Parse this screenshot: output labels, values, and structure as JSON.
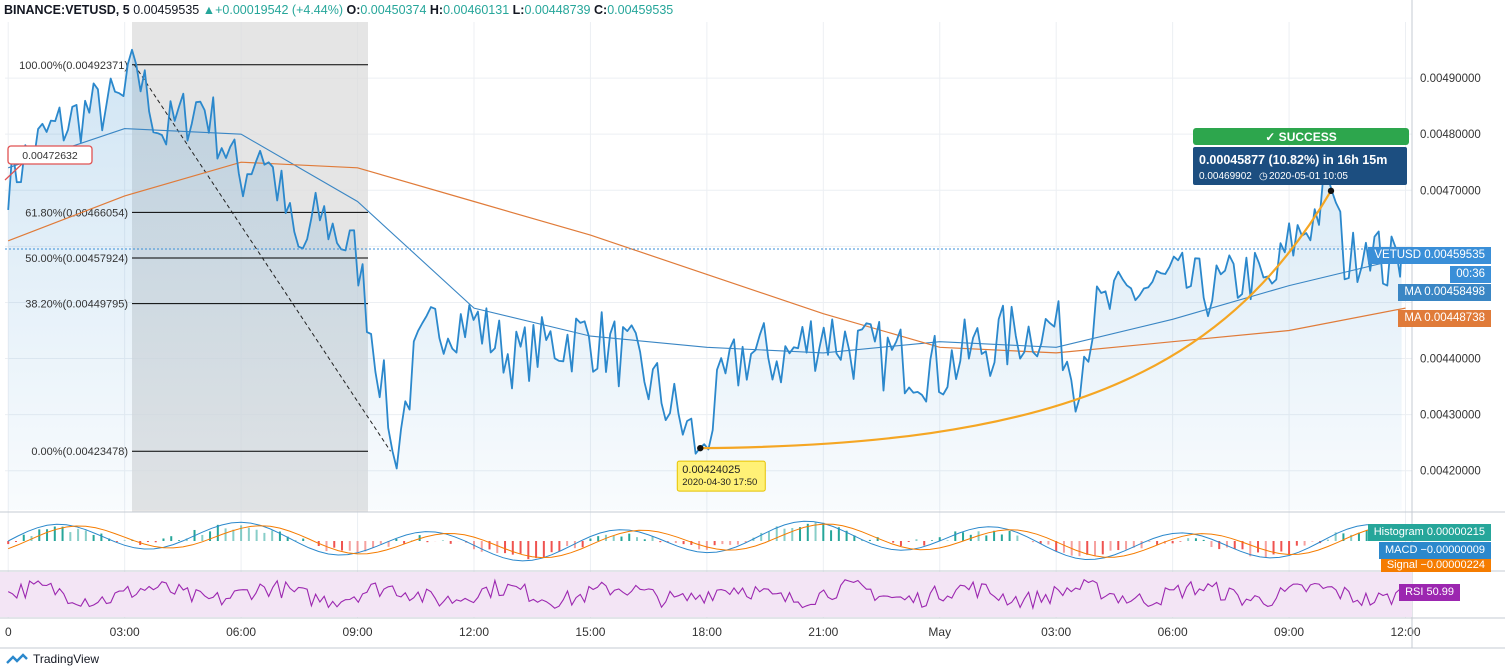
{
  "header": {
    "symbol": "BINANCE:VETUSD, 5",
    "last": "0.00459535",
    "change": "+0.00019542 (+4.44%)",
    "o_label": "O:",
    "o": "0.00450374",
    "h_label": "H:",
    "h": "0.00460131",
    "l_label": "L:",
    "l": "0.00448739",
    "c_label": "C:",
    "c": "0.00459535"
  },
  "price_axis": {
    "ticks": [
      "0.00490000",
      "0.00480000",
      "0.00470000",
      "0.00440000",
      "0.00430000",
      "0.00420000"
    ]
  },
  "time_axis": {
    "ticks": [
      "0",
      "03:00",
      "06:00",
      "09:00",
      "12:00",
      "15:00",
      "18:00",
      "21:00",
      "May",
      "03:00",
      "06:00",
      "09:00",
      "12:00"
    ]
  },
  "fib_levels": [
    {
      "label": "100.00%(0.00492371)",
      "value": 0.00492371
    },
    {
      "label": "61.80%(0.00466054)",
      "value": 0.00466054
    },
    {
      "label": "50.00%(0.00457924)",
      "value": 0.00457924
    },
    {
      "label": "38.20%(0.00449795)",
      "value": 0.00449795
    },
    {
      "label": "0.00%(0.00423478)",
      "value": 0.00423478
    }
  ],
  "price_tag_left": "0.00472632",
  "low_callout": {
    "price": "0.00424025",
    "date": "2020-04-30 17:50"
  },
  "success": {
    "badge": "✓ SUCCESS",
    "line1": "0.00045877 (10.82%) in 16h 15m",
    "line2": "0.00469902",
    "line2_date": "2020-05-01  10:05"
  },
  "right_labels": {
    "vetusd_name": "VETUSD",
    "vetusd_value": "0.00459535",
    "countdown": "00:36",
    "ma1_name": "MA",
    "ma1_value": "0.00458498",
    "ma2_name": "MA",
    "ma2_value": "0.00448738",
    "hist_name": "Histogram",
    "hist_value": "0.00000215",
    "macd_name": "MACD",
    "macd_value": "−0.00000009",
    "signal_name": "Signal",
    "signal_value": "−0.00000224",
    "rsi_name": "RSI",
    "rsi_value": "50.99"
  },
  "colors": {
    "price": "#2b88cc",
    "ma_fast": "#3a86c4",
    "ma_slow": "#e07b39",
    "fib": "#000000",
    "success": "#2da64d",
    "callout": "#1c4e80",
    "low_callout": "#fff176",
    "rsi": "#9c27b0",
    "hist_up": "#26a69a",
    "hist_down": "#ef5350",
    "vetusd_label": "#3a8fd8",
    "rsi_bg": "#f3e5f5"
  },
  "footer": {
    "brand": "TradingView"
  },
  "chart_data": {
    "type": "line",
    "title": "",
    "series": [
      {
        "name": "VETUSD",
        "x": [
          "00:00",
          "01:00",
          "02:00",
          "03:00",
          "03:15",
          "04:00",
          "05:00",
          "06:00",
          "06:30",
          "07:00",
          "07:30",
          "08:00",
          "08:30",
          "09:00",
          "09:30",
          "10:00",
          "10:30",
          "11:00",
          "12:00",
          "13:00",
          "14:00",
          "15:00",
          "16:00",
          "17:00",
          "17:50",
          "18:30",
          "19:00",
          "20:00",
          "21:00",
          "22:00",
          "23:00",
          "00:00",
          "01:00",
          "02:00",
          "03:00",
          "03:30",
          "04:00",
          "05:00",
          "06:00",
          "07:00",
          "08:00",
          "08:30",
          "09:00",
          "09:30",
          "10:05",
          "10:30",
          "11:00",
          "11:30",
          "12:00"
        ],
        "y": [
          0.00472,
          0.0048,
          0.00484,
          0.00486,
          0.00492,
          0.0048,
          0.00486,
          0.00472,
          0.00478,
          0.0047,
          0.00458,
          0.00466,
          0.00462,
          0.00458,
          0.0044,
          0.00424,
          0.0044,
          0.00446,
          0.00447,
          0.0044,
          0.00443,
          0.00444,
          0.0044,
          0.00432,
          0.00424,
          0.00436,
          0.00441,
          0.0044,
          0.00445,
          0.00441,
          0.0044,
          0.00438,
          0.00442,
          0.00444,
          0.00446,
          0.00436,
          0.00448,
          0.00452,
          0.00454,
          0.00452,
          0.00455,
          0.00452,
          0.0046,
          0.00464,
          0.0047,
          0.00456,
          0.00462,
          0.00456,
          0.00459
        ]
      },
      {
        "name": "MA",
        "x": [
          "00:00",
          "03:00",
          "06:00",
          "09:00",
          "12:00",
          "15:00",
          "18:00",
          "21:00",
          "00:00",
          "03:00",
          "06:00",
          "09:00",
          "12:00"
        ],
        "y": [
          0.00474,
          0.00481,
          0.0048,
          0.00468,
          0.00449,
          0.00444,
          0.00442,
          0.00441,
          0.00443,
          0.00442,
          0.00447,
          0.00453,
          0.00458
        ]
      },
      {
        "name": "MA",
        "x": [
          "00:00",
          "03:00",
          "06:00",
          "09:00",
          "12:00",
          "15:00",
          "18:00",
          "21:00",
          "00:00",
          "03:00",
          "06:00",
          "09:00",
          "12:00"
        ],
        "y": [
          0.00461,
          0.00469,
          0.00475,
          0.00474,
          0.00468,
          0.00462,
          0.00455,
          0.00448,
          0.00442,
          0.00441,
          0.00443,
          0.00445,
          0.00449
        ]
      }
    ],
    "ylim": [
      0.00413,
      0.005
    ],
    "grid": true
  }
}
